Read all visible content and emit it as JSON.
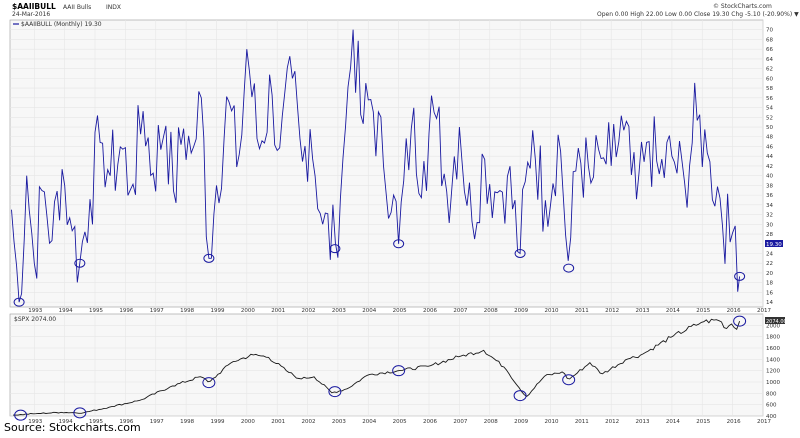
{
  "header": {
    "symbol": "$AAIIBULL",
    "name": "AAII Bulls",
    "exchange": "INDX",
    "date": "24-Mar-2016",
    "ohlc": "Open 0.00  High 22.00  Low 0.00  Close 19.30  Chg -5.10 (-20.90%) ▼",
    "copyright": "© StockCharts.com"
  },
  "source_note": "Source: Stockcharts.com",
  "colors": {
    "sentiment_line": "#1a1aa0",
    "spx_line": "#1a1a1a",
    "grid": "#e6e6e6",
    "panel_bg": "#f7f7f7",
    "circle": "#1a1aa0"
  },
  "chart_data": [
    {
      "type": "line",
      "legend": "$AAIIBULL (Monthly) 19.30",
      "last_value_label": "19.30",
      "frequency": "monthly",
      "xlim": [
        1992.2,
        2017.0
      ],
      "ylim": [
        13,
        72
      ],
      "x_ticks": [
        "1993",
        "1994",
        "1995",
        "1996",
        "1997",
        "1998",
        "1999",
        "2000",
        "2001",
        "2002",
        "2003",
        "2004",
        "2005",
        "2006",
        "2007",
        "2008",
        "2009",
        "2010",
        "2011",
        "2012",
        "2013",
        "2014",
        "2015",
        "2016",
        "2017"
      ],
      "y_ticks": [
        14,
        16,
        18,
        20,
        22,
        24,
        26,
        28,
        30,
        32,
        34,
        36,
        38,
        40,
        42,
        44,
        46,
        48,
        50,
        52,
        54,
        56,
        58,
        60,
        62,
        64,
        66,
        68,
        70
      ],
      "keypoints": [
        [
          1992.25,
          33
        ],
        [
          1992.5,
          14
        ],
        [
          1992.75,
          40
        ],
        [
          1993.0,
          22
        ],
        [
          1993.3,
          38
        ],
        [
          1993.6,
          26
        ],
        [
          1993.9,
          42
        ],
        [
          1994.2,
          30
        ],
        [
          1994.5,
          22
        ],
        [
          1994.8,
          34
        ],
        [
          1995.2,
          48
        ],
        [
          1995.5,
          40
        ],
        [
          1995.9,
          46
        ],
        [
          1996.2,
          36
        ],
        [
          1996.6,
          54
        ],
        [
          1996.9,
          40
        ],
        [
          1997.3,
          52
        ],
        [
          1997.6,
          36
        ],
        [
          1997.9,
          50
        ],
        [
          1998.2,
          44
        ],
        [
          1998.5,
          56
        ],
        [
          1998.75,
          23
        ],
        [
          1999.0,
          38
        ],
        [
          1999.4,
          56
        ],
        [
          1999.7,
          40
        ],
        [
          2000.0,
          66
        ],
        [
          2000.4,
          45
        ],
        [
          2000.8,
          58
        ],
        [
          2001.1,
          45
        ],
        [
          2001.5,
          60
        ],
        [
          2001.8,
          42
        ],
        [
          2002.1,
          50
        ],
        [
          2002.5,
          30
        ],
        [
          2002.9,
          25
        ],
        [
          2003.2,
          46
        ],
        [
          2003.5,
          70
        ],
        [
          2003.8,
          50
        ],
        [
          2004.1,
          56
        ],
        [
          2004.5,
          42
        ],
        [
          2004.8,
          38
        ],
        [
          2005.0,
          26
        ],
        [
          2005.4,
          50
        ],
        [
          2005.8,
          42
        ],
        [
          2006.2,
          54
        ],
        [
          2006.6,
          36
        ],
        [
          2007.0,
          50
        ],
        [
          2007.4,
          30
        ],
        [
          2007.8,
          44
        ],
        [
          2008.2,
          36
        ],
        [
          2008.6,
          40
        ],
        [
          2009.0,
          24
        ],
        [
          2009.4,
          50
        ],
        [
          2009.8,
          34
        ],
        [
          2010.3,
          48
        ],
        [
          2010.6,
          21
        ],
        [
          2010.9,
          46
        ],
        [
          2011.3,
          38
        ],
        [
          2011.7,
          44
        ],
        [
          2012.0,
          42
        ],
        [
          2012.4,
          50
        ],
        [
          2012.8,
          34
        ],
        [
          2013.2,
          48
        ],
        [
          2013.6,
          40
        ],
        [
          2014.0,
          44
        ],
        [
          2014.4,
          38
        ],
        [
          2014.8,
          52
        ],
        [
          2015.2,
          44
        ],
        [
          2015.6,
          35
        ],
        [
          2015.9,
          26
        ],
        [
          2016.1,
          30
        ],
        [
          2016.23,
          19.3
        ]
      ],
      "circles": [
        {
          "x": 1992.5,
          "y": 14
        },
        {
          "x": 1994.5,
          "y": 22
        },
        {
          "x": 1998.75,
          "y": 23
        },
        {
          "x": 2002.9,
          "y": 25
        },
        {
          "x": 2005.0,
          "y": 26
        },
        {
          "x": 2009.0,
          "y": 24
        },
        {
          "x": 2010.6,
          "y": 21
        },
        {
          "x": 2016.23,
          "y": 19.3
        }
      ]
    },
    {
      "type": "line",
      "legend": "$SPX 2074.00",
      "last_value_label": "2074.00",
      "xlim": [
        1992.2,
        2017.0
      ],
      "ylim": [
        400,
        2200
      ],
      "y_ticks": [
        400,
        600,
        800,
        1000,
        1200,
        1400,
        1600,
        1800,
        2000
      ],
      "keypoints": [
        [
          1992.3,
          415
        ],
        [
          1993.0,
          440
        ],
        [
          1993.9,
          465
        ],
        [
          1994.6,
          455
        ],
        [
          1995.5,
          560
        ],
        [
          1996.5,
          680
        ],
        [
          1997.5,
          920
        ],
        [
          1998.5,
          1100
        ],
        [
          1998.75,
          990
        ],
        [
          1999.5,
          1350
        ],
        [
          2000.2,
          1480
        ],
        [
          2000.7,
          1440
        ],
        [
          2001.3,
          1200
        ],
        [
          2001.75,
          1050
        ],
        [
          2002.2,
          1100
        ],
        [
          2002.8,
          810
        ],
        [
          2003.3,
          880
        ],
        [
          2004.0,
          1130
        ],
        [
          2005.0,
          1200
        ],
        [
          2006.0,
          1280
        ],
        [
          2007.0,
          1450
        ],
        [
          2007.8,
          1560
        ],
        [
          2008.5,
          1250
        ],
        [
          2009.2,
          735
        ],
        [
          2009.8,
          1100
        ],
        [
          2010.4,
          1180
        ],
        [
          2010.6,
          1040
        ],
        [
          2011.3,
          1340
        ],
        [
          2011.7,
          1140
        ],
        [
          2012.5,
          1400
        ],
        [
          2013.0,
          1480
        ],
        [
          2014.0,
          1800
        ],
        [
          2015.0,
          2060
        ],
        [
          2015.6,
          2100
        ],
        [
          2015.75,
          1920
        ],
        [
          2016.0,
          2040
        ],
        [
          2016.1,
          1880
        ],
        [
          2016.23,
          2074
        ]
      ],
      "circles": [
        {
          "x": 1992.55,
          "y": 415
        },
        {
          "x": 1994.5,
          "y": 455
        },
        {
          "x": 1998.75,
          "y": 990
        },
        {
          "x": 2002.9,
          "y": 830
        },
        {
          "x": 2005.0,
          "y": 1200
        },
        {
          "x": 2009.0,
          "y": 760
        },
        {
          "x": 2010.6,
          "y": 1040
        },
        {
          "x": 2016.23,
          "y": 2074
        }
      ]
    }
  ]
}
